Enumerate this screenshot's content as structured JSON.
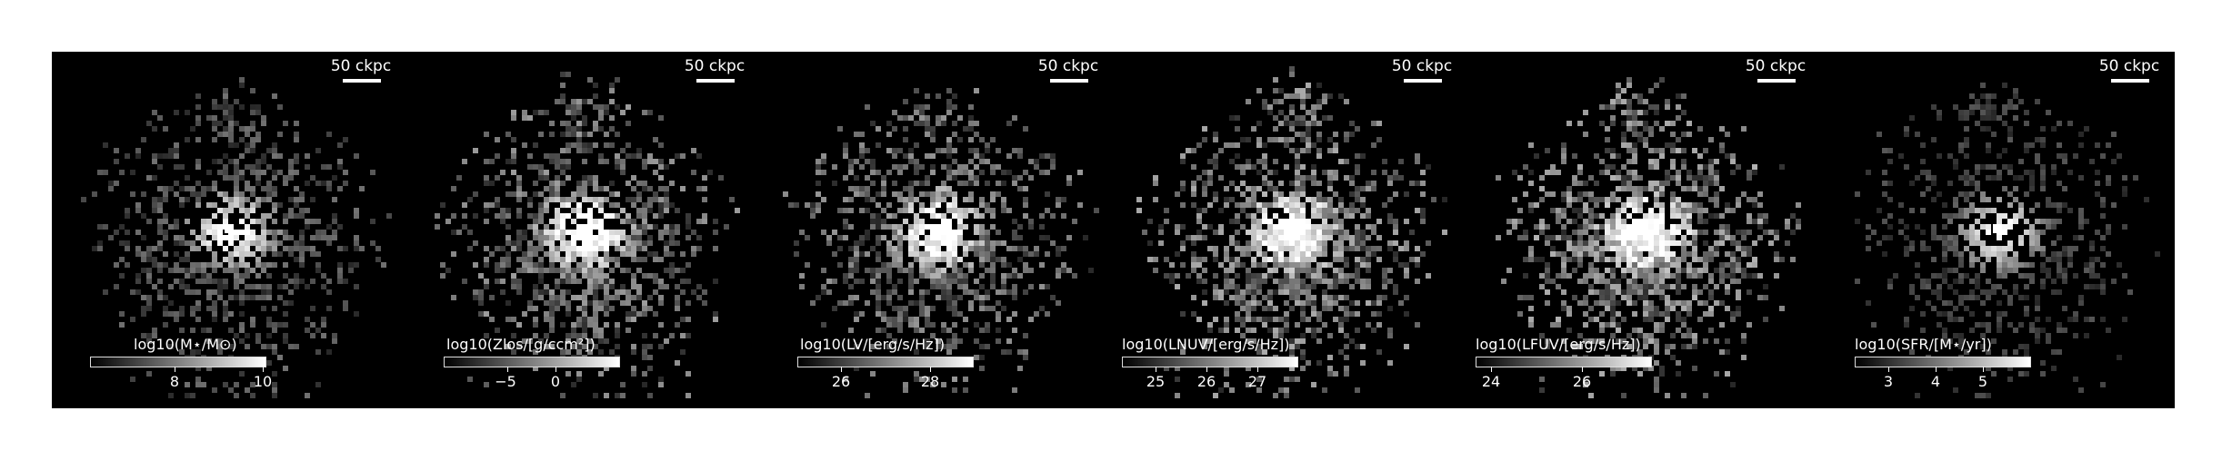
{
  "panels": [
    {
      "scale_label": "50 ckpc",
      "colorbar_title": "log10(M⋆/M⊙)",
      "colorbar_ticks": [
        "8",
        "10"
      ],
      "brightness": 0.55
    },
    {
      "scale_label": "50 ckpc",
      "colorbar_title": "log10(Zlos/[g/ccm²])",
      "colorbar_ticks": [
        "−5",
        "0"
      ],
      "brightness": 0.85
    },
    {
      "scale_label": "50 ckpc",
      "colorbar_title": "log10(LV/[erg/s/Hz])",
      "colorbar_ticks": [
        "26",
        "28"
      ],
      "brightness": 0.8
    },
    {
      "scale_label": "50 ckpc",
      "colorbar_title": "log10(LNUV/[erg/s/Hz])",
      "colorbar_ticks": [
        "25",
        "26",
        "27"
      ],
      "brightness": 0.95
    },
    {
      "scale_label": "50 ckpc",
      "colorbar_title": "log10(LFUV/[erg/s/Hz])",
      "colorbar_ticks": [
        "24",
        "26"
      ],
      "brightness": 1.0
    },
    {
      "scale_label": "50 ckpc",
      "colorbar_title": "log10(SFR/[M⋆/yr])",
      "colorbar_ticks": [
        "3",
        "4",
        "5"
      ],
      "brightness": 0.35
    }
  ]
}
